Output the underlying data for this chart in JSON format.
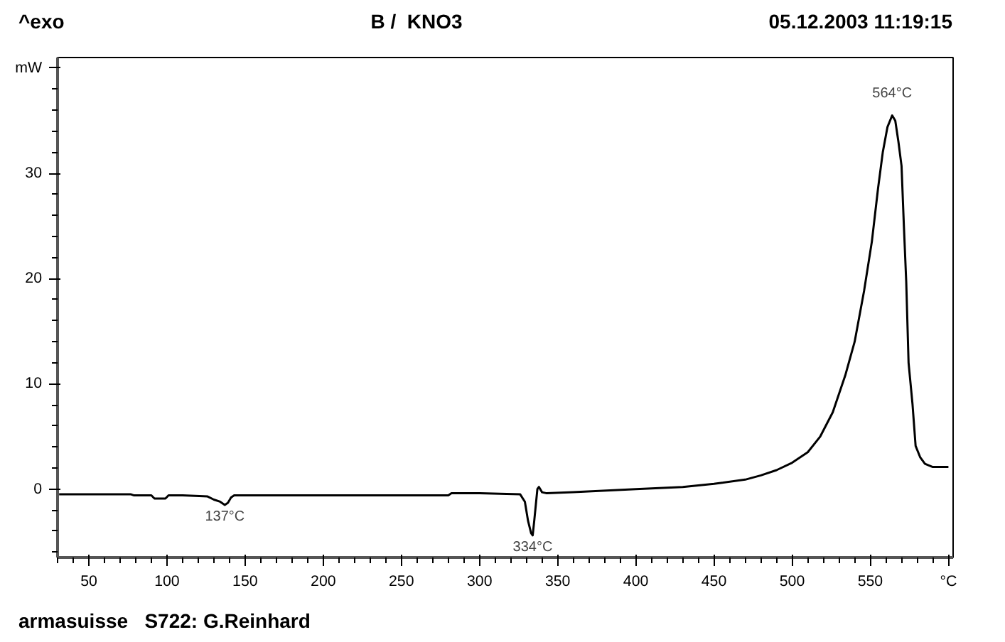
{
  "chart_data": {
    "type": "line",
    "title": "B /  KNO3",
    "x": [
      31,
      50,
      77,
      79,
      90,
      92,
      99,
      101,
      110,
      126,
      130,
      134,
      137,
      139,
      141,
      143,
      150,
      200,
      250,
      280,
      282,
      300,
      326,
      329,
      331,
      333,
      334,
      335,
      336,
      337,
      338,
      340,
      343,
      360,
      400,
      430,
      450,
      470,
      480,
      490,
      500,
      510,
      518,
      526,
      534,
      540,
      546,
      551,
      555,
      558,
      561,
      564,
      566,
      568,
      570,
      571.5,
      573,
      574.5,
      577,
      579,
      582,
      585,
      590,
      600
    ],
    "series": [
      {
        "color": "#000000",
        "values": [
          -0.5,
          -0.5,
          -0.5,
          -0.6,
          -0.6,
          -0.9,
          -0.9,
          -0.6,
          -0.6,
          -0.7,
          -1.0,
          -1.2,
          -1.5,
          -1.3,
          -0.8,
          -0.6,
          -0.6,
          -0.6,
          -0.6,
          -0.6,
          -0.4,
          -0.4,
          -0.5,
          -1.2,
          -3.0,
          -4.2,
          -4.4,
          -3.0,
          -1.5,
          0.0,
          0.2,
          -0.3,
          -0.4,
          -0.3,
          0.0,
          0.2,
          0.5,
          0.9,
          1.3,
          1.8,
          2.5,
          3.5,
          5.0,
          7.3,
          10.8,
          14.0,
          18.8,
          23.5,
          28.6,
          32.0,
          34.4,
          35.5,
          35.0,
          33.0,
          30.7,
          25.0,
          19.7,
          12.0,
          8.1,
          4.1,
          3.0,
          2.4,
          2.1,
          2.1
        ]
      }
    ],
    "xlim": [
      30,
      603
    ],
    "ylim": [
      -6.5,
      41
    ],
    "xticks": [
      50,
      100,
      150,
      200,
      250,
      300,
      350,
      400,
      450,
      500,
      550,
      {
        "value": 600,
        "label": "°C"
      }
    ],
    "yticks": [
      0,
      10,
      20,
      30,
      {
        "value": 40,
        "label": "mW"
      }
    ],
    "grid": false,
    "line_style": "solid",
    "marker": "none",
    "annotations": [
      "^exo",
      "05.12.2003 11:19:15",
      "armasuisse   S722: G.Reinhard",
      {
        "text": "137°C",
        "x": 137,
        "y": -1.5
      },
      {
        "text": "334°C",
        "x": 334,
        "y": -4.4
      },
      {
        "text": "564°C",
        "x": 564,
        "y": 35.5
      }
    ]
  }
}
